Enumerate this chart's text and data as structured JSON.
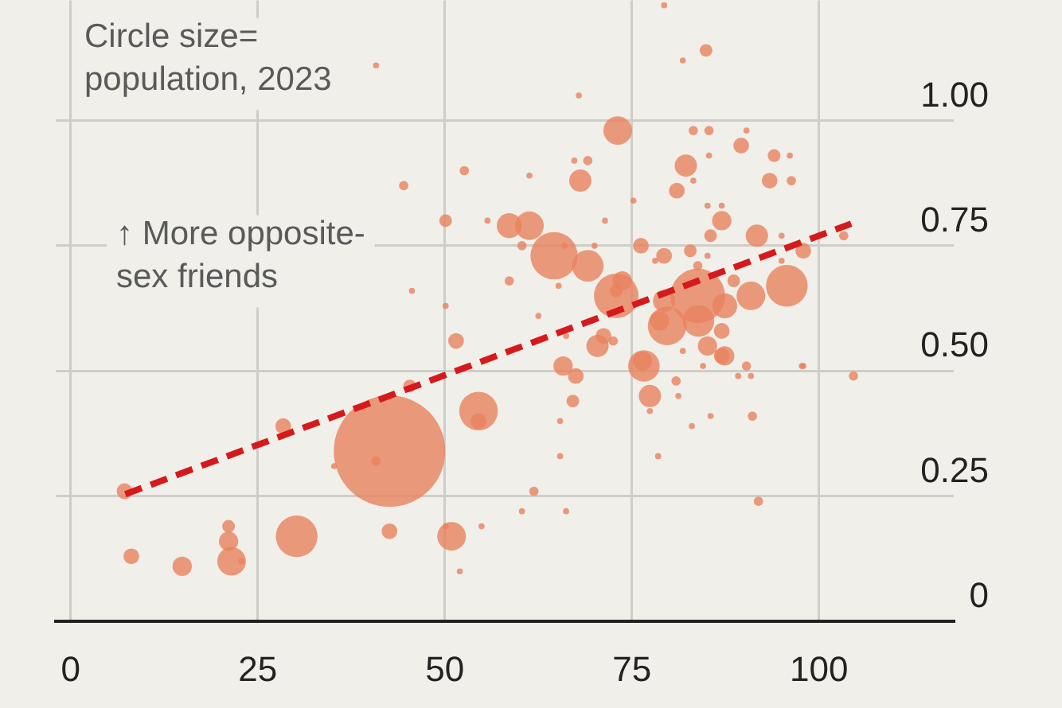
{
  "chart_data": {
    "type": "bubble",
    "annotations": [
      "Circle size=\npopulation, 2023",
      "↑ More opposite-\nsex friends"
    ],
    "xlim": [
      -2,
      118
    ],
    "ylim": [
      0,
      1.24
    ],
    "xticks": [
      0,
      25,
      50,
      75,
      100
    ],
    "yticks": [
      0,
      0.25,
      {
        "value": 0.5,
        "label": "0.50"
      },
      0.75,
      {
        "value": 1,
        "label": "1.00"
      }
    ],
    "grid": true,
    "series": [
      {
        "color": "#e8825e",
        "x": [
          7.2,
          8.1,
          14.9,
          21.1,
          21.1,
          21.5,
          22.8,
          28.4,
          30.2,
          35.2,
          42.6,
          40.8,
          42.6,
          45.3,
          50.9,
          50.1,
          52.0,
          54.9,
          54.5,
          54.5,
          40.8,
          52.6,
          44.5,
          50.1,
          55.7,
          45.6,
          50.1,
          51.5,
          58.6,
          58.6,
          79.3,
          84.9,
          81.8,
          67.9,
          73.1,
          83.2,
          85.3,
          90.3,
          89.6,
          67.3,
          69.1,
          68.1,
          85.3,
          82.2,
          81.0,
          94.0,
          96.1,
          93.4,
          96.3,
          61.3,
          75.2,
          71.4,
          83.2,
          85.1,
          87.0,
          87.0,
          85.5,
          91.7,
          95.0,
          103.3,
          97.9,
          61.3,
          60.3,
          64.6,
          66.0,
          69.1,
          70.0,
          65.2,
          76.2,
          79.3,
          78.1,
          82.8,
          83.8,
          85.1,
          90.9,
          95.7,
          95.0,
          88.6,
          72.9,
          73.7,
          72.9,
          83.8,
          79.3,
          78.7,
          79.7,
          83.9,
          87.4,
          87.0,
          70.4,
          71.2,
          72.5,
          62.5,
          66.2,
          76.4,
          81.8,
          85.1,
          87.4,
          97.9,
          65.8,
          67.5,
          67.1,
          65.4,
          65.4,
          61.9,
          60.3,
          66.2,
          76.6,
          77.4,
          77.4,
          80.9,
          81.2,
          83.0,
          85.5,
          78.5,
          84.5,
          89.2,
          90.9,
          90.3,
          91.1,
          91.9,
          97.7,
          104.6,
          87.0
        ],
        "values": [
          0.26,
          0.13,
          0.11,
          0.19,
          0.16,
          0.12,
          0.12,
          0.39,
          0.17,
          0.31,
          0.34,
          0.32,
          0.18,
          0.47,
          0.17,
          0.19,
          0.1,
          0.19,
          0.42,
          0.4,
          1.11,
          0.9,
          0.87,
          0.8,
          0.8,
          0.66,
          0.63,
          0.56,
          0.79,
          0.68,
          1.23,
          1.14,
          1.12,
          1.05,
          0.98,
          0.98,
          0.98,
          0.98,
          0.95,
          0.92,
          0.92,
          0.88,
          0.93,
          0.91,
          0.86,
          0.93,
          0.93,
          0.88,
          0.88,
          0.89,
          0.84,
          0.8,
          0.88,
          0.83,
          0.83,
          0.8,
          0.77,
          0.77,
          0.77,
          0.77,
          0.74,
          0.79,
          0.75,
          0.73,
          0.75,
          0.71,
          0.75,
          0.67,
          0.75,
          0.73,
          0.72,
          0.74,
          0.71,
          0.73,
          0.65,
          0.67,
          0.72,
          0.68,
          0.65,
          0.68,
          0.66,
          0.65,
          0.64,
          0.6,
          0.59,
          0.6,
          0.63,
          0.58,
          0.55,
          0.57,
          0.56,
          0.61,
          0.57,
          0.52,
          0.54,
          0.55,
          0.53,
          0.51,
          0.51,
          0.49,
          0.44,
          0.4,
          0.33,
          0.26,
          0.22,
          0.22,
          0.51,
          0.45,
          0.42,
          0.48,
          0.45,
          0.39,
          0.41,
          0.33,
          0.51,
          0.49,
          0.49,
          0.51,
          0.41,
          0.24,
          0.51,
          0.49,
          0.53
        ],
        "sizes": [
          0.02,
          0.02,
          0.03,
          0.013,
          0.03,
          0.066,
          0.003,
          0.02,
          0.14,
          0.003,
          1,
          0.007,
          0.02,
          0.013,
          0.066,
          0.003,
          0.003,
          0.003,
          0.12,
          0.02,
          0.003,
          0.007,
          0.007,
          0.013,
          0.003,
          0.003,
          0.003,
          0.02,
          0.05,
          0.007,
          0.003,
          0.013,
          0.003,
          0.003,
          0.066,
          0.007,
          0.007,
          0.003,
          0.02,
          0.003,
          0.007,
          0.04,
          0.003,
          0.04,
          0.02,
          0.013,
          0.003,
          0.02,
          0.007,
          0.003,
          0.003,
          0.003,
          0.003,
          0.003,
          0.003,
          0.03,
          0.013,
          0.04,
          0.003,
          0.007,
          0.02,
          0.066,
          0.007,
          0.18,
          0.003,
          0.08,
          0.003,
          0.003,
          0.02,
          0.02,
          0.003,
          0.013,
          0.007,
          0.003,
          0.066,
          0.14,
          0.003,
          0.013,
          0.16,
          0.03,
          0.013,
          0.24,
          0.04,
          0.03,
          0.12,
          0.08,
          0.05,
          0.02,
          0.04,
          0.02,
          0.007,
          0.003,
          0.003,
          0.03,
          0.003,
          0.03,
          0.03,
          0.003,
          0.03,
          0.02,
          0.013,
          0.003,
          0.003,
          0.007,
          0.003,
          0.003,
          0.08,
          0.04,
          0.003,
          0.007,
          0.003,
          0.003,
          0.003,
          0.003,
          0.003,
          0.003,
          0.003,
          0.007,
          0.007,
          0.007,
          0.003,
          0.007,
          0.02
        ]
      },
      {
        "type": "line",
        "color": "#d6191b",
        "x": [
          7.3,
          104.3
        ],
        "values": [
          0.254,
          0.794
        ],
        "line_style": "dashed",
        "marker": "none"
      }
    ]
  }
}
